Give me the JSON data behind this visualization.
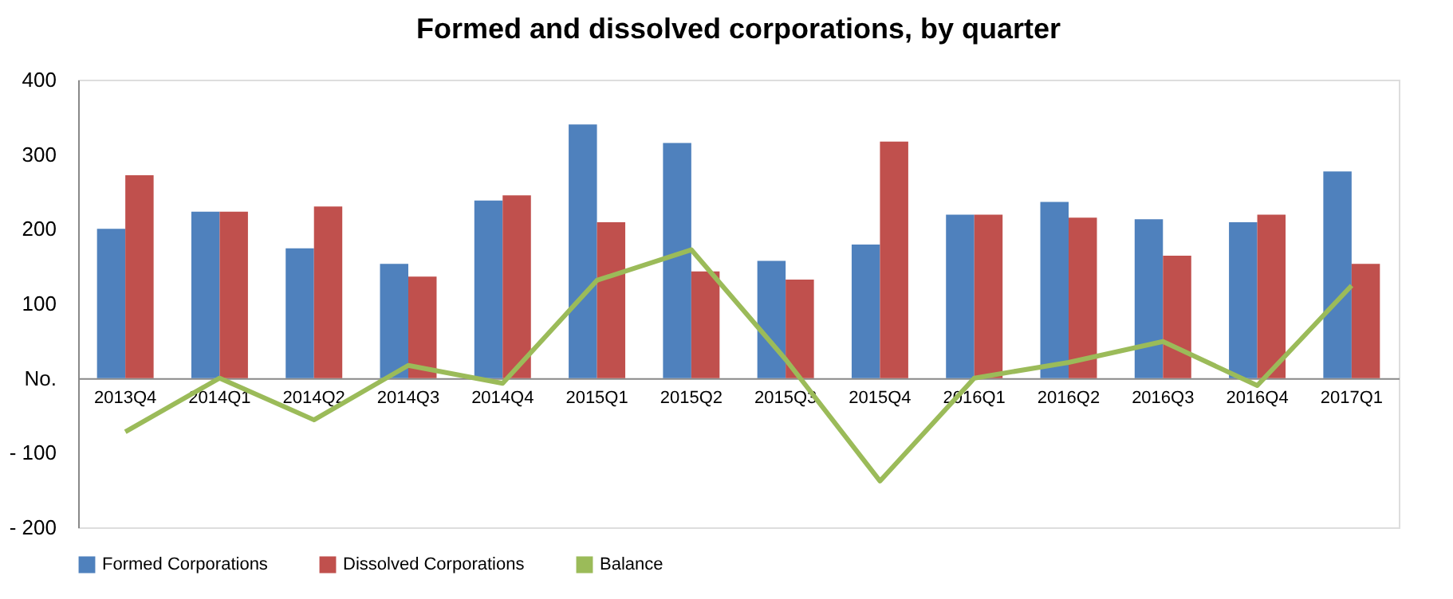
{
  "chart_data": {
    "type": "bar",
    "title": "Formed and dissolved corporations, by quarter",
    "categories": [
      "2013Q4",
      "2014Q1",
      "2014Q2",
      "2014Q3",
      "2014Q4",
      "2015Q1",
      "2015Q2",
      "2015Q3",
      "2015Q4",
      "2016Q1",
      "2016Q2",
      "2016Q3",
      "2016Q4",
      "2017Q1"
    ],
    "series": [
      {
        "name": "Formed Corporations",
        "color": "#4f81bd",
        "values": [
          200,
          223,
          174,
          153,
          238,
          340,
          315,
          157,
          179,
          219,
          236,
          213,
          209,
          277
        ]
      },
      {
        "name": "Dissolved Corporations",
        "color": "#c0504d",
        "values": [
          272,
          223,
          230,
          136,
          245,
          209,
          143,
          132,
          317,
          219,
          215,
          164,
          219,
          153
        ]
      },
      {
        "name": "Balance",
        "type": "line",
        "color": "#9bbb59",
        "values": [
          -72,
          0,
          -56,
          17,
          -7,
          131,
          172,
          25,
          -138,
          0,
          21,
          49,
          -10,
          124
        ]
      }
    ],
    "ylim": [
      -200,
      400
    ],
    "yticks": [
      {
        "value": -200,
        "label": "- 200"
      },
      {
        "value": -100,
        "label": "- 100"
      },
      {
        "value": 0,
        "label": "No."
      },
      100,
      200,
      300,
      400
    ],
    "grid": false,
    "legend": "bottom",
    "marker": "none",
    "line_style": "solid"
  }
}
